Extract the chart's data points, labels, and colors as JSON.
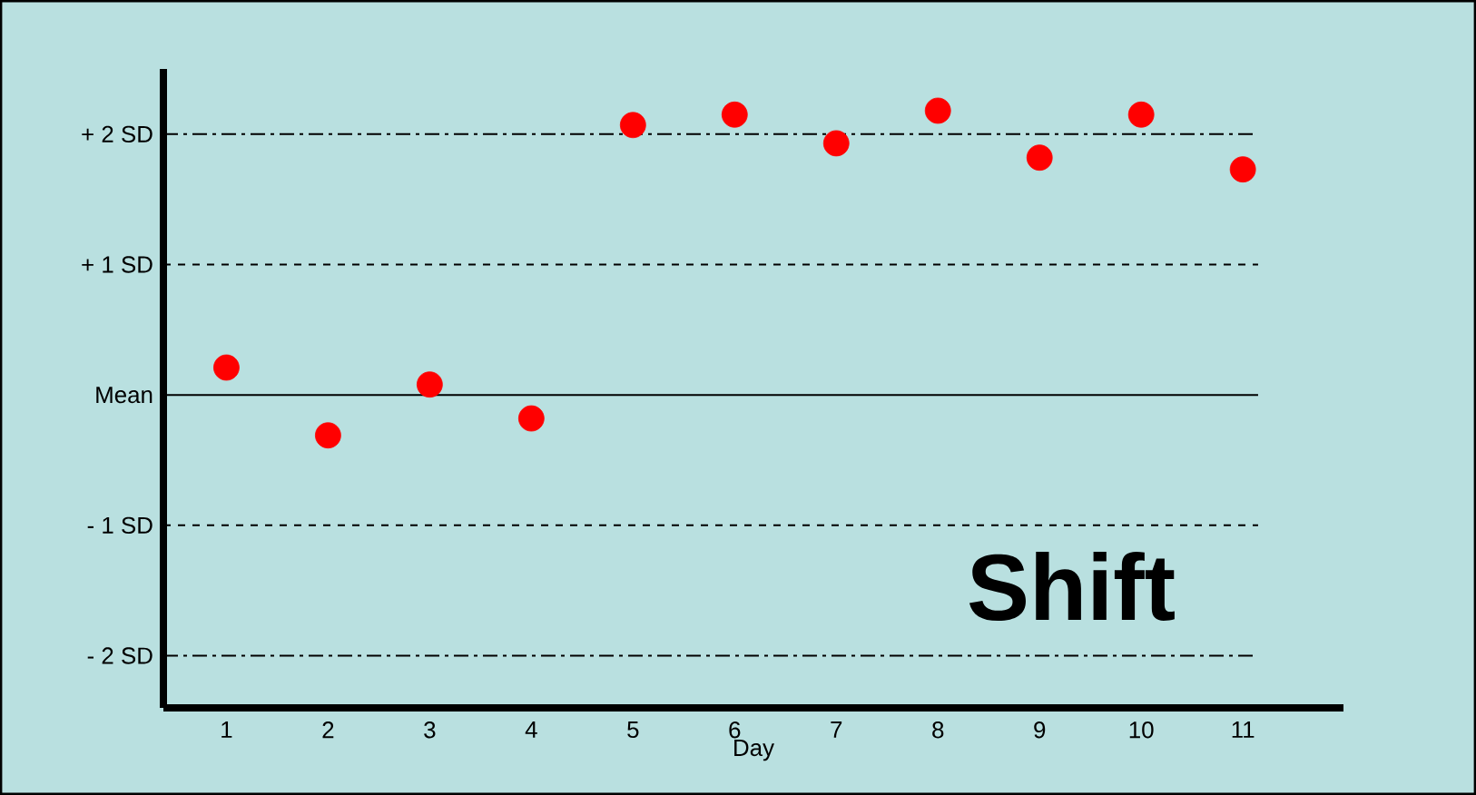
{
  "chart_data": {
    "type": "scatter",
    "xlabel": "Day",
    "categories": [
      "1",
      "2",
      "3",
      "4",
      "5",
      "6",
      "7",
      "8",
      "9",
      "10",
      "11"
    ],
    "series": [
      {
        "color": "#ff0000",
        "values": [
          0.21,
          -0.31,
          0.08,
          -0.18,
          2.07,
          2.15,
          1.93,
          2.18,
          1.82,
          2.15,
          1.73
        ]
      }
    ],
    "ylim": [
      -2.4,
      2.5
    ],
    "yticks": [
      {
        "value": -2,
        "label": "- 2 SD"
      },
      {
        "value": -1,
        "label": "- 1 SD"
      },
      {
        "value": 0,
        "label": "Mean"
      },
      {
        "value": 1,
        "label": "+ 1 SD"
      },
      {
        "value": 2,
        "label": "+ 2 SD"
      }
    ],
    "ref_lines": [
      {
        "axis": "y",
        "value": 2,
        "line_style": "dashdot",
        "color": "#000000"
      },
      {
        "axis": "y",
        "value": 1,
        "line_style": "dashed",
        "color": "#000000"
      },
      {
        "axis": "y",
        "value": 0,
        "line_style": "solid",
        "color": "#000000"
      },
      {
        "axis": "y",
        "value": -1,
        "line_style": "dashed",
        "color": "#000000"
      },
      {
        "axis": "y",
        "value": -2,
        "line_style": "dashdot",
        "color": "#000000"
      }
    ],
    "annotations": [
      "**Shift**"
    ],
    "marker": "circle",
    "grid": false
  }
}
